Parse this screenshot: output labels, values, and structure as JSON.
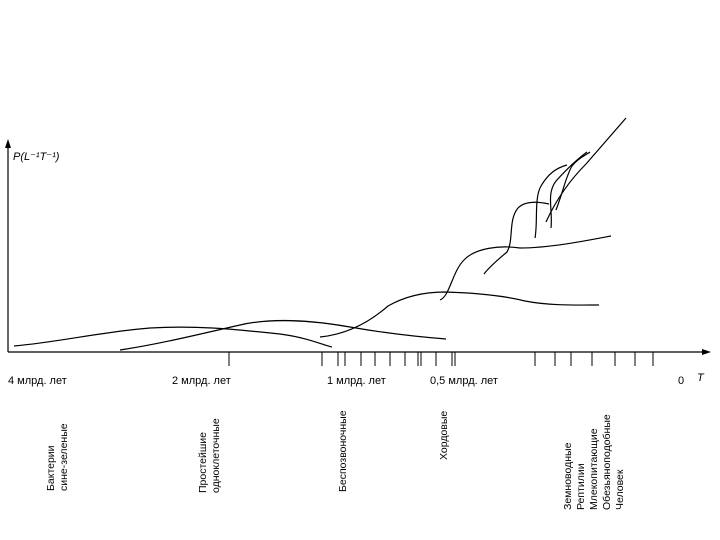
{
  "y_axis_label": "P(L⁻¹T⁻¹)",
  "x_axis_label": "T",
  "time_ticks": [
    "4 млрд. лет",
    "2 млрд. лет",
    "1 млрд. лет",
    "0,5 млрд. лет",
    "0"
  ],
  "groups": [
    {
      "lines": [
        "Бактерии",
        "сине-зеленые"
      ]
    },
    {
      "lines": [
        "Простейшие",
        "одноклеточные"
      ]
    },
    {
      "lines": [
        "Беспозвоночные"
      ]
    },
    {
      "lines": [
        "Хордовые"
      ]
    },
    {
      "lines": [
        "Земноводные",
        "Рептилии",
        "Млекопитающие",
        "Обезьяноподобные",
        "Человек"
      ]
    }
  ]
}
